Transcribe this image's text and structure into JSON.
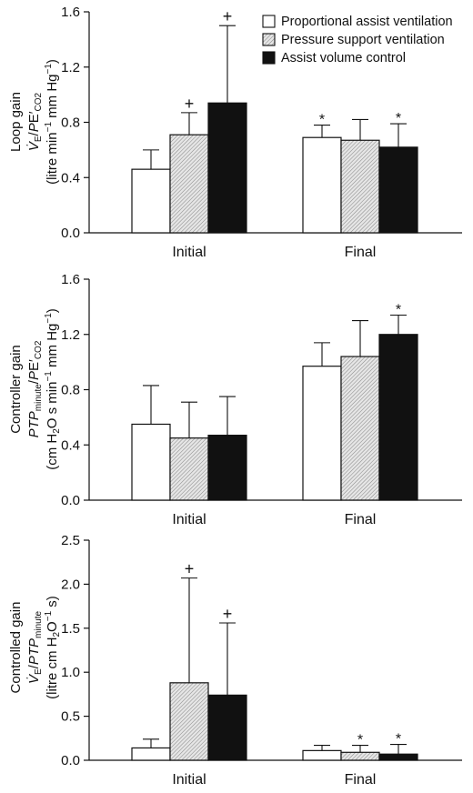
{
  "legend": {
    "entries": [
      {
        "name": "Proportional assist ventilation",
        "fill": "white"
      },
      {
        "name": "Pressure support ventilation",
        "fill": "hatch"
      },
      {
        "name": "Assist volume control",
        "fill": "black"
      }
    ],
    "placement": "top-right"
  },
  "colors": {
    "ink": "#111111",
    "hatch_bg": "#e6e6e6",
    "hatch_line": "#8a8a8a"
  },
  "chart_data": [
    {
      "type": "bar",
      "title": "",
      "ylabel_lines": [
        "Loop gain",
        "V̇E/PE′CO2",
        "(litre min−1 mm Hg−1)"
      ],
      "categories": [
        "Initial",
        "Final"
      ],
      "ylim": [
        0,
        1.6
      ],
      "yticks": [
        "0.0",
        "0.4",
        "0.8",
        "1.2",
        "1.6"
      ],
      "series": [
        {
          "name": "Proportional assist ventilation",
          "values": [
            0.46,
            0.69
          ],
          "errors": [
            0.14,
            0.09
          ],
          "markers": [
            "",
            "*"
          ]
        },
        {
          "name": "Pressure support ventilation",
          "values": [
            0.71,
            0.67
          ],
          "errors": [
            0.16,
            0.15
          ],
          "markers": [
            "+",
            ""
          ]
        },
        {
          "name": "Assist volume control",
          "values": [
            0.94,
            0.62
          ],
          "errors": [
            0.56,
            0.17
          ],
          "markers": [
            "+",
            "*"
          ]
        }
      ]
    },
    {
      "type": "bar",
      "title": "",
      "ylabel_lines": [
        "Controller gain",
        "PTPminute/PE′CO2",
        "(cm H2O s min−1 mm Hg−1)"
      ],
      "categories": [
        "Initial",
        "Final"
      ],
      "ylim": [
        0,
        1.6
      ],
      "yticks": [
        "0.0",
        "0.4",
        "0.8",
        "1.2",
        "1.6"
      ],
      "series": [
        {
          "name": "Proportional assist ventilation",
          "values": [
            0.55,
            0.97
          ],
          "errors": [
            0.28,
            0.17
          ],
          "markers": [
            "",
            ""
          ]
        },
        {
          "name": "Pressure support ventilation",
          "values": [
            0.45,
            1.04
          ],
          "errors": [
            0.26,
            0.26
          ],
          "markers": [
            "",
            ""
          ]
        },
        {
          "name": "Assist volume control",
          "values": [
            0.47,
            1.2
          ],
          "errors": [
            0.28,
            0.14
          ],
          "markers": [
            "",
            "*"
          ]
        }
      ]
    },
    {
      "type": "bar",
      "title": "",
      "ylabel_lines": [
        "Controlled gain",
        "V̇E/PTPminute",
        "(litre cm H2O−1 s)"
      ],
      "categories": [
        "Initial",
        "Final"
      ],
      "ylim": [
        0,
        2.5
      ],
      "yticks": [
        "0.0",
        "0.5",
        "1.0",
        "1.5",
        "2.0",
        "2.5"
      ],
      "series": [
        {
          "name": "Proportional assist ventilation",
          "values": [
            0.14,
            0.11
          ],
          "errors": [
            0.1,
            0.06
          ],
          "markers": [
            "",
            ""
          ]
        },
        {
          "name": "Pressure support ventilation",
          "values": [
            0.88,
            0.09
          ],
          "errors": [
            1.19,
            0.08
          ],
          "markers": [
            "+",
            "*"
          ]
        },
        {
          "name": "Assist volume control",
          "values": [
            0.74,
            0.07
          ],
          "errors": [
            0.82,
            0.11
          ],
          "markers": [
            "+",
            "*"
          ]
        }
      ]
    }
  ]
}
